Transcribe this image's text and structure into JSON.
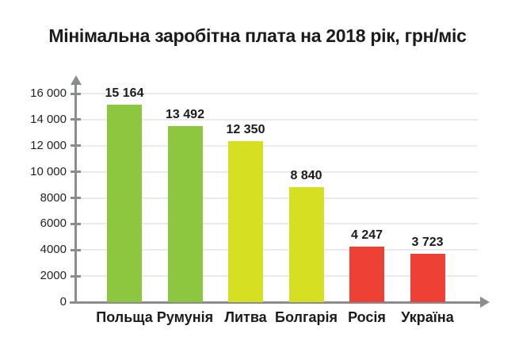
{
  "title": "Мінімальна заробітна плата на 2018 рік, грн/міс",
  "chart_data": {
    "type": "bar",
    "title": "Мінімальна заробітна плата на 2018 рік, грн/міс",
    "xlabel": "",
    "ylabel": "",
    "categories": [
      "Польща",
      "Румунія",
      "Литва",
      "Болгарія",
      "Росія",
      "Україна"
    ],
    "values": [
      15164,
      13492,
      12350,
      8840,
      4247,
      3723
    ],
    "value_labels": [
      "15 164",
      "13 492",
      "12 350",
      "8 840",
      "4 247",
      "3 723"
    ],
    "bar_colors": [
      "#8DC63F",
      "#8DC63F",
      "#D7DF23",
      "#D7DF23",
      "#EE4035",
      "#EE4035"
    ],
    "ylim": [
      0,
      16400
    ],
    "ytick_values": [
      0,
      2000,
      4000,
      6000,
      8000,
      10000,
      12000,
      14000,
      16000
    ],
    "ytick_labels": [
      "0",
      "2000",
      "4000",
      "6000",
      "8000",
      "10 000",
      "12 000",
      "14 000",
      "16 000"
    ],
    "grid": true,
    "legend": false,
    "colors": {
      "axis": "#8A8C8E",
      "gridline": "#E9EAEA",
      "text": "#1B1B1B",
      "background": "#FFFFFF"
    }
  }
}
